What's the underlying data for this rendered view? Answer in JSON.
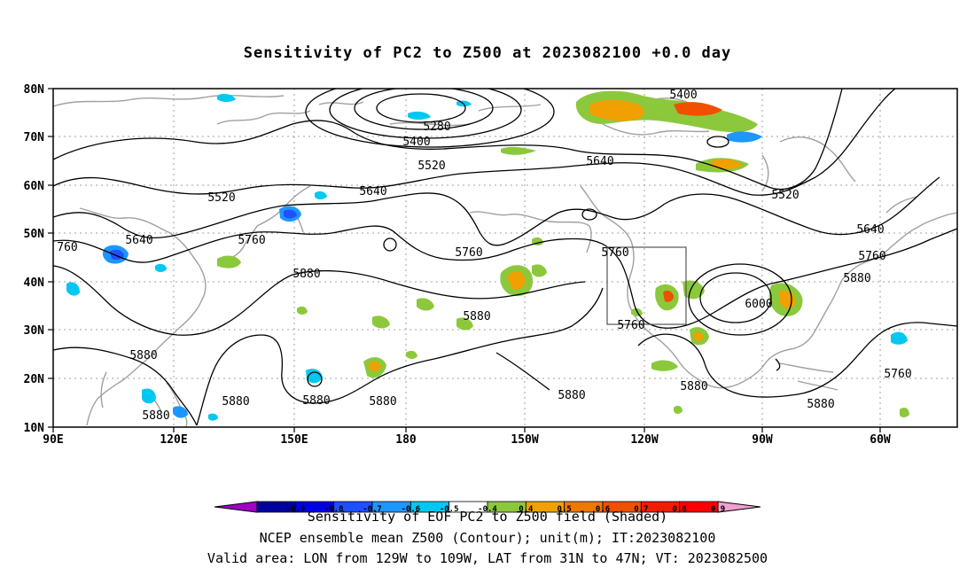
{
  "title": "Sensitivity of PC2 to Z500 at 2023082100 +0.0 day",
  "axes": {
    "lat_labels": [
      "80N",
      "70N",
      "60N",
      "50N",
      "40N",
      "30N",
      "20N",
      "10N"
    ],
    "lon_labels": [
      "90E",
      "120E",
      "150E",
      "180",
      "150W",
      "120W",
      "90W",
      "60W"
    ]
  },
  "contour_labels": [
    "5280",
    "5400",
    "5520",
    "5640",
    "5760",
    "5880",
    "6000",
    "5400",
    "5520",
    "5640",
    "5760",
    "5880",
    "5520",
    "5640",
    "5760",
    "5880",
    "5880",
    "5880",
    "5880",
    "5880",
    "5880",
    "5880",
    "5880",
    "5640",
    "5760",
    "5880",
    "5760",
    "5760",
    "5880",
    "5520",
    "760"
  ],
  "colorbar": {
    "ticks": [
      "-0.9",
      "-0.8",
      "-0.7",
      "-0.6",
      "-0.5",
      "-0.4",
      "0.4",
      "0.5",
      "0.6",
      "0.7",
      "0.8",
      "0.9"
    ],
    "colors": [
      "#a000c8",
      "#0000a0",
      "#0000e6",
      "#1e50ff",
      "#1e96ff",
      "#00c8f0",
      "#ffffff",
      "#8cc83c",
      "#f0a000",
      "#f07800",
      "#f05000",
      "#f01e00",
      "#ff0000",
      "#f0a0d0"
    ]
  },
  "captions": {
    "line1": "Sensitivity of EOF PC2 to Z500 field (Shaded)",
    "line2": "NCEP ensemble mean Z500 (Contour); unit(m); IT:2023082100",
    "line3": "Valid area: LON from 129W to 109W, LAT from 31N to 47N; VT: 2023082500"
  },
  "colors": {
    "contour": "#000000",
    "coast": "#a0a0a0",
    "grid": "#a0a0a0",
    "pos_low": "#8cc83c",
    "pos_mid": "#f0a000",
    "pos_high": "#f05000",
    "neg_low": "#00c8f0",
    "neg_mid": "#1e96ff",
    "neg_high": "#1e50ff"
  }
}
